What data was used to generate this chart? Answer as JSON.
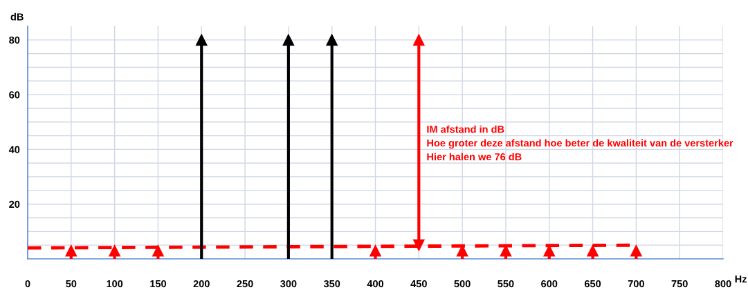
{
  "chart_data": {
    "type": "lollipop",
    "xlabel": "Hz",
    "ylabel": "dB",
    "xlim": [
      0,
      800
    ],
    "xticks": [
      0,
      50,
      100,
      150,
      200,
      250,
      300,
      350,
      400,
      450,
      500,
      550,
      600,
      650,
      700,
      750,
      800
    ],
    "ylim": [
      0,
      85
    ],
    "yticks": [
      {
        "value": 5,
        "label": null
      },
      {
        "value": 10,
        "label": null
      },
      {
        "value": 15,
        "label": null
      },
      20,
      {
        "value": 25,
        "label": null
      },
      {
        "value": 30,
        "label": null
      },
      {
        "value": 35,
        "label": null
      },
      40,
      {
        "value": 45,
        "label": null
      },
      {
        "value": 50,
        "label": null
      },
      {
        "value": 55,
        "label": null
      },
      60,
      {
        "value": 65,
        "label": null
      },
      {
        "value": 70,
        "label": null
      },
      {
        "value": 75,
        "label": null
      },
      80
    ],
    "grid": true,
    "marker": "triangle",
    "series": [
      {
        "color": "#000000",
        "x": [
          200,
          300,
          350
        ],
        "values": [
          80,
          80,
          80
        ]
      },
      {
        "color": "#ff0000",
        "x": [
          50,
          100,
          150,
          400,
          500,
          550,
          600,
          650,
          700
        ],
        "values": [
          3,
          3,
          3,
          3,
          3,
          3,
          3,
          3,
          3
        ]
      },
      {
        "type": "line",
        "color": "#ff0000",
        "line_style": "dashed",
        "marker": "none",
        "x": [
          0,
          700
        ],
        "values": [
          4,
          5
        ]
      },
      {
        "type": "line",
        "color": "#ff0000",
        "line_style": "solid",
        "marker": "triangle",
        "x": [
          450,
          450
        ],
        "values": [
          5,
          80
        ]
      }
    ],
    "annotations": [
      {
        "text": "IM afstand in dB\nHoe groter deze afstand hoe beter de kwaliteit van de versterker\nHier halen we 76 dB",
        "x": 450,
        "y": 42
      }
    ]
  }
}
